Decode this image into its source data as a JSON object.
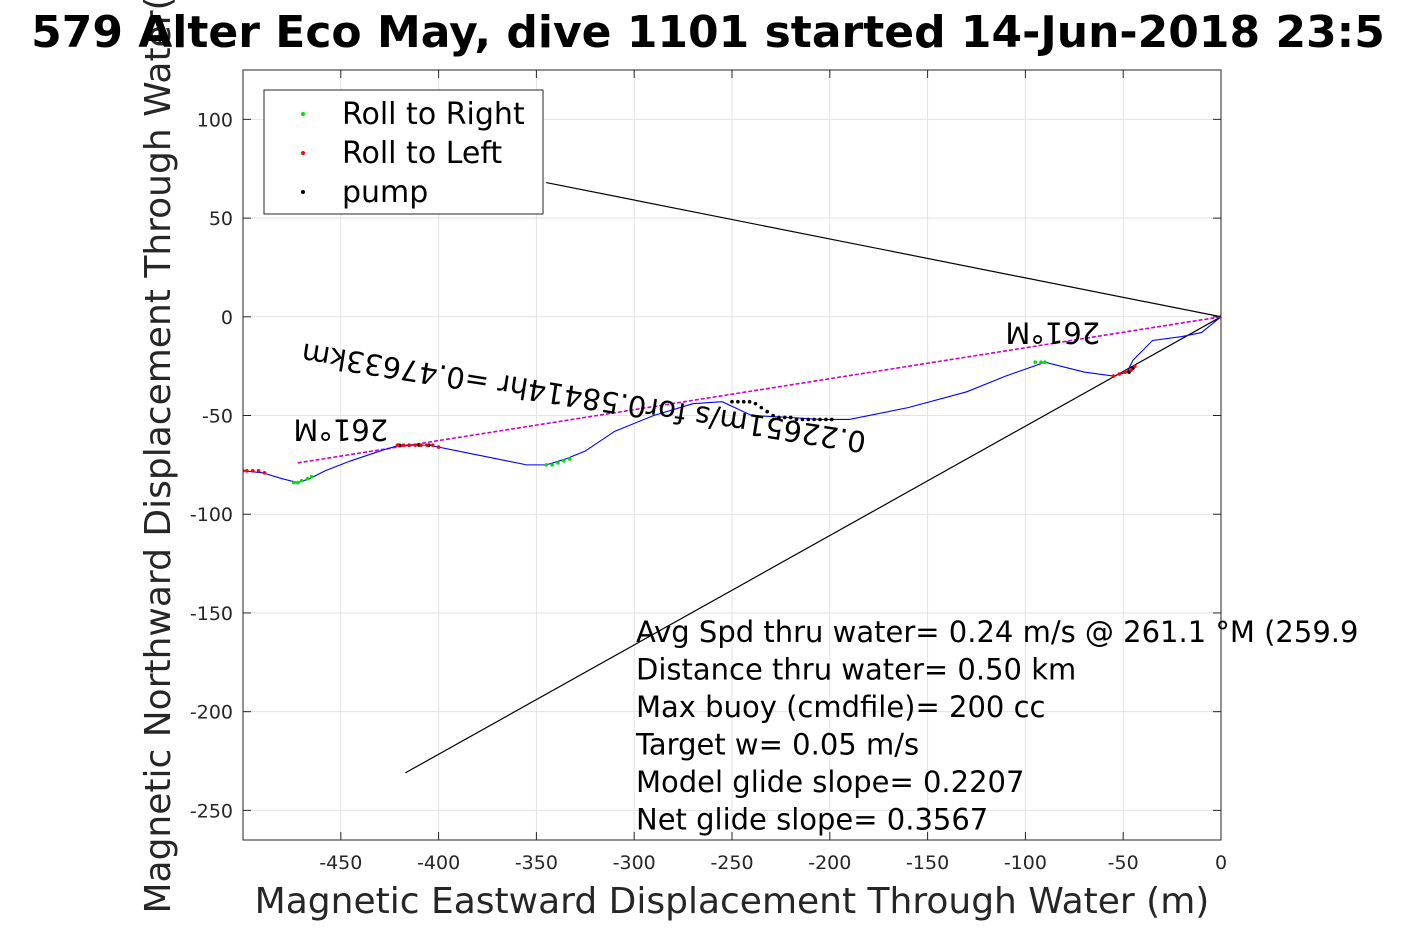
{
  "chart_data": {
    "type": "line",
    "title": "579 Alter Eco May, dive 1101 started 14-Jun-2018 23:5",
    "xlabel": "Magnetic Eastward Displacement Through Water (m)",
    "ylabel": "Magnetic Northward Displacement Through Water(",
    "xlim": [
      -500,
      0
    ],
    "ylim": [
      -265,
      125
    ],
    "xticks": [
      -450,
      -400,
      -350,
      -300,
      -250,
      -200,
      -150,
      -100,
      -50,
      0
    ],
    "yticks": [
      100,
      50,
      0,
      -50,
      -100,
      -150,
      -200,
      -250
    ],
    "grid": true,
    "legend": {
      "placement": "top-left",
      "entries": [
        {
          "label": "Roll to Right",
          "color": "#00e000"
        },
        {
          "label": "Roll to Left",
          "color": "#ff0000"
        },
        {
          "label": "pump",
          "color": "#000000"
        }
      ]
    },
    "track": {
      "color": "#0000ff",
      "x": [
        0,
        -10,
        -20,
        -35,
        -45,
        -48,
        -55,
        -70,
        -90,
        -110,
        -130,
        -160,
        -190,
        -205,
        -220,
        -240,
        -255,
        -270,
        -290,
        -310,
        -325,
        -335,
        -345,
        -355,
        -370,
        -390,
        -405,
        -420,
        -430,
        -445,
        -458,
        -466,
        -472,
        -480,
        -490,
        -500
      ],
      "y": [
        0,
        -8,
        -10,
        -12,
        -22,
        -28,
        -30,
        -28,
        -23,
        -30,
        -38,
        -46,
        -52,
        -52,
        -51,
        -50,
        -43,
        -44,
        -50,
        -58,
        -68,
        -72,
        -75,
        -75,
        -72,
        -68,
        -65,
        -65,
        -68,
        -73,
        -78,
        -82,
        -84,
        -82,
        -79,
        -78
      ]
    },
    "roll_right": {
      "x": [
        -474,
        -472,
        -470,
        -467,
        -465,
        -345,
        -342,
        -339,
        -336,
        -333,
        -95,
        -92,
        -90
      ],
      "y": [
        -84,
        -84,
        -83,
        -82,
        -81,
        -75,
        -75,
        -74,
        -73,
        -72,
        -23,
        -23,
        -23
      ]
    },
    "roll_left": {
      "x": [
        -500,
        -498,
        -495,
        -492,
        -489,
        -421,
        -418,
        -415,
        -412,
        -409,
        -406,
        -403,
        -400,
        -55,
        -52,
        -49,
        -46,
        -44,
        0
      ],
      "y": [
        -78,
        -78,
        -78,
        -78,
        -79,
        -65,
        -65,
        -65,
        -65,
        -65,
        -65,
        -65,
        -66,
        -30,
        -29,
        -28,
        -27,
        -25,
        0
      ]
    },
    "pump": {
      "x": [
        -250,
        -247,
        -244,
        -241,
        -238,
        -235,
        -232,
        -229,
        -226,
        -223,
        -220,
        -217,
        -214,
        -211,
        -208,
        -205,
        -202,
        -199,
        -420,
        -415,
        -410,
        -405,
        -47,
        -45
      ],
      "y": [
        -43,
        -43,
        -43,
        -43,
        -44,
        -46,
        -48,
        -50,
        -51,
        -51,
        -51,
        -52,
        -52,
        -52,
        -52,
        -52,
        -52,
        -52,
        -65,
        -65,
        -65,
        -65,
        -28,
        -26
      ]
    },
    "net_line": {
      "x": [
        -472,
        0
      ],
      "y": [
        -74,
        0
      ],
      "color": "#cc00cc"
    },
    "bounds_lines": [
      {
        "x": [
          0,
          -345
        ],
        "y": [
          0,
          68
        ]
      },
      {
        "x": [
          0,
          -417
        ],
        "y": [
          0,
          -231
        ]
      }
    ],
    "annotations": [
      {
        "text": "261°M",
        "x": -86,
        "y": -3,
        "rotation": 180
      },
      {
        "text": "0.22651m/s for0.58414hr =0.47633km",
        "x": -325,
        "y": -36,
        "rotation": 189
      },
      {
        "text": "261°M",
        "x": -450,
        "y": -52,
        "rotation": 180
      }
    ],
    "info_text": [
      "Avg Spd thru water=  0.24 m/s @ 261.1 °M (259.9",
      "Distance thru water=  0.50 km",
      "Max buoy (cmdfile)= 200 cc",
      "Target w= 0.05 m/s",
      "Model glide slope= 0.2207",
      "Net glide slope= 0.3567"
    ]
  }
}
